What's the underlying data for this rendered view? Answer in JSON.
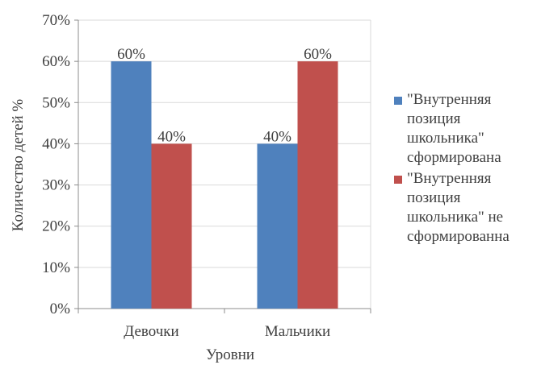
{
  "chart_data": {
    "type": "bar",
    "categories": [
      "Девочки",
      "Мальчики"
    ],
    "series": [
      {
        "name": "\"Внутренняя позиция школьника\" сформирована",
        "values": [
          60,
          40
        ],
        "color": "#4F81BD",
        "labels": [
          "60%",
          "40%"
        ]
      },
      {
        "name": "\"Внутренняя позиция школьника\" не сформированна",
        "values": [
          40,
          60
        ],
        "color": "#C0504D",
        "labels": [
          "40%",
          "60%"
        ]
      }
    ],
    "title": "",
    "xlabel": "Уровни",
    "ylabel": "Количество детей %",
    "ylim": [
      0,
      70
    ],
    "yticks": [
      "0%",
      "10%",
      "20%",
      "30%",
      "40%",
      "50%",
      "60%",
      "70%"
    ],
    "grid": true,
    "legend_position": "right"
  }
}
